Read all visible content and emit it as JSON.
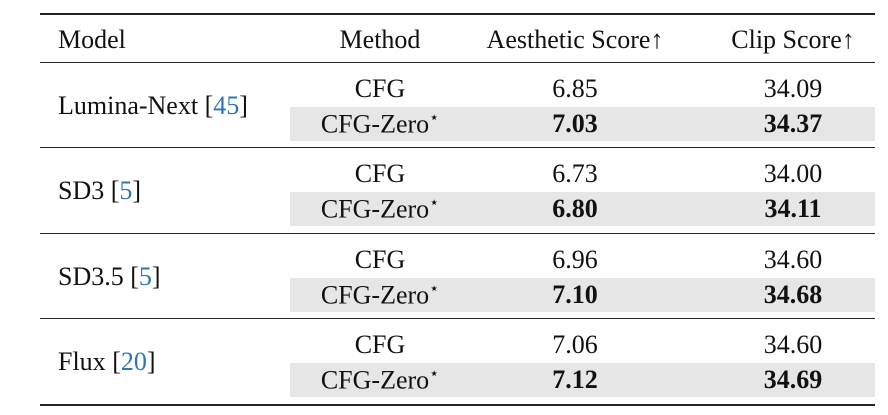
{
  "table": {
    "header": [
      "Model",
      "Method",
      "Aesthetic Score↑",
      "Clip Score↑"
    ],
    "cite_brackets": [
      "[",
      "]"
    ],
    "groups": [
      {
        "model": "Lumina-Next",
        "cite": "45",
        "rows": [
          {
            "method": "CFG",
            "aesthetic": "6.85",
            "clip": "34.09"
          },
          {
            "method": "CFG-Zero",
            "sup": "⋆",
            "aesthetic": "7.03",
            "clip": "34.37"
          }
        ]
      },
      {
        "model": "SD3",
        "cite": "5",
        "rows": [
          {
            "method": "CFG",
            "aesthetic": "6.73",
            "clip": "34.00"
          },
          {
            "method": "CFG-Zero",
            "sup": "⋆",
            "aesthetic": "6.80",
            "clip": "34.11"
          }
        ]
      },
      {
        "model": "SD3.5",
        "cite": "5",
        "rows": [
          {
            "method": "CFG",
            "aesthetic": "6.96",
            "clip": "34.60"
          },
          {
            "method": "CFG-Zero",
            "sup": "⋆",
            "aesthetic": "7.10",
            "clip": "34.68"
          }
        ]
      },
      {
        "model": "Flux",
        "cite": "20",
        "rows": [
          {
            "method": "CFG",
            "aesthetic": "7.06",
            "clip": "34.60"
          },
          {
            "method": "CFG-Zero",
            "sup": "⋆",
            "aesthetic": "7.12",
            "clip": "34.69"
          }
        ]
      }
    ]
  }
}
